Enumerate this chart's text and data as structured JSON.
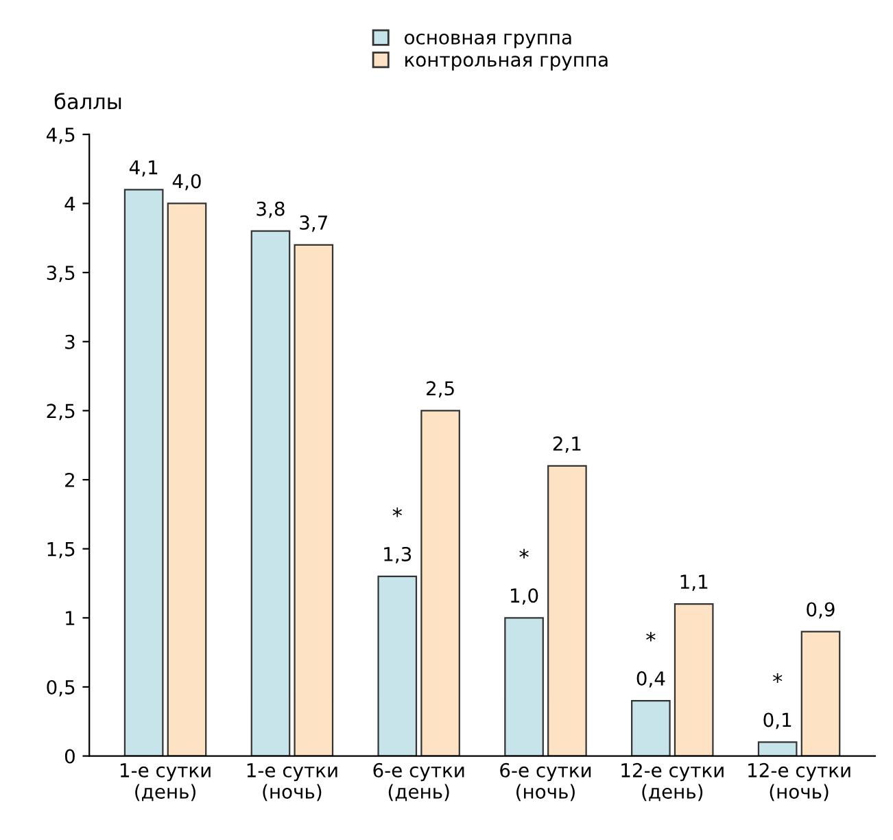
{
  "chart_data": {
    "type": "bar",
    "ylabel": "баллы",
    "categories": [
      "1-е сутки\n(день)",
      "1-е сутки\n(ночь)",
      "6-е сутки\n(день)",
      "6-е сутки\n(ночь)",
      "12-е сутки\n(день)",
      "12-е сутки\n(ночь)"
    ],
    "series": [
      {
        "name": "основная группа",
        "color": "#c6e4e9",
        "values": [
          4.1,
          3.8,
          1.3,
          1.0,
          0.4,
          0.1
        ],
        "value_labels": [
          "4,1",
          "3,8",
          "1,3",
          "1,0",
          "0,4",
          "0,1"
        ]
      },
      {
        "name": "контрольная группа",
        "color": "#fde2c4",
        "values": [
          4.0,
          3.7,
          2.5,
          2.1,
          1.1,
          0.9
        ],
        "value_labels": [
          "4,0",
          "3,7",
          "2,5",
          "2,1",
          "1,1",
          "0,9"
        ]
      }
    ],
    "ylim": [
      0,
      4.5
    ],
    "yticks": [
      0,
      {
        "value": 0.5,
        "label": "0,5"
      },
      1,
      {
        "value": 1.5,
        "label": "1,5"
      },
      2,
      {
        "value": 2.5,
        "label": "2,5"
      },
      3,
      {
        "value": 3.5,
        "label": "3,5"
      },
      4,
      {
        "value": 4.5,
        "label": "4,5"
      }
    ],
    "annotations": [
      {
        "text": "*",
        "x": "6-е сутки\n(день)",
        "y": 1.3
      },
      {
        "text": "*",
        "x": "6-е сутки\n(ночь)",
        "y": 1.0
      },
      {
        "text": "*",
        "x": "12-е сутки\n(день)",
        "y": 0.4
      },
      {
        "text": "*",
        "x": "12-е сутки\n(ночь)",
        "y": 0.1
      }
    ],
    "grid": false,
    "legend": "top"
  }
}
